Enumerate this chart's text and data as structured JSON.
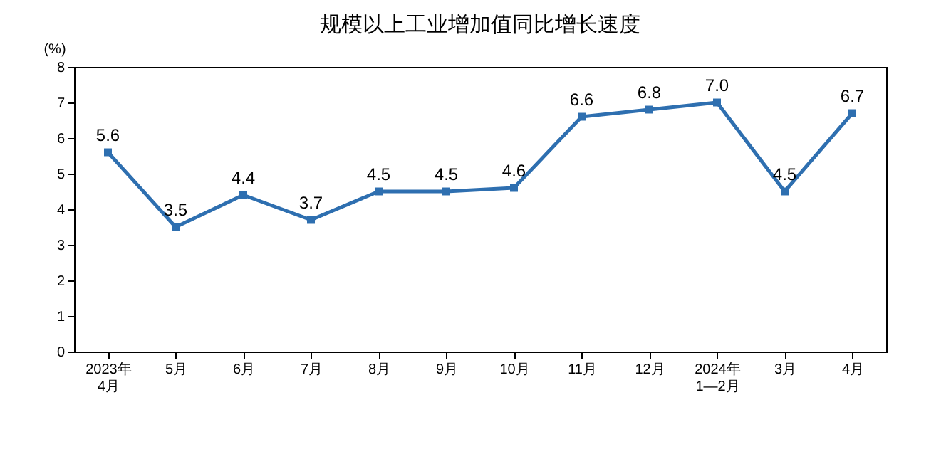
{
  "chart_data": {
    "type": "line",
    "title": "规模以上工业增加值同比增长速度",
    "ylabel": "(%)",
    "categories": [
      "2023年\n4月",
      "5月",
      "6月",
      "7月",
      "8月",
      "9月",
      "10月",
      "11月",
      "12月",
      "2024年\n1—2月",
      "3月",
      "4月"
    ],
    "series": [
      {
        "color": "#2e6fb0",
        "values": [
          5.6,
          3.5,
          4.4,
          3.7,
          4.5,
          4.5,
          4.6,
          6.6,
          6.8,
          7.0,
          4.5,
          6.7
        ],
        "value_labels": [
          "5.6",
          "3.5",
          "4.4",
          "3.7",
          "4.5",
          "4.5",
          "4.6",
          "6.6",
          "6.8",
          "7.0",
          "4.5",
          "6.7"
        ]
      }
    ],
    "ylim": [
      0,
      8
    ],
    "yticks": [
      0,
      1,
      2,
      3,
      4,
      5,
      6,
      7,
      8
    ],
    "grid": false,
    "legend": false,
    "marker": "square",
    "line_style": "solid"
  }
}
